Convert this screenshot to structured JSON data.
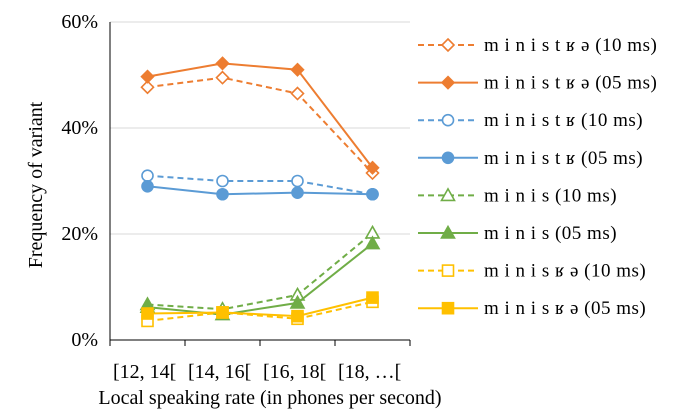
{
  "chart_data": {
    "type": "line",
    "xlabel": "Local speaking rate (in phones per second)",
    "ylabel": "Frequency of variant",
    "categories": [
      "[12, 14[",
      "[14, 16[",
      "[16, 18[",
      "[18, …["
    ],
    "ylim": [
      0,
      60
    ],
    "yticks": [
      0,
      20,
      40,
      60
    ],
    "ytick_labels": [
      "0%",
      "20%",
      "40%",
      "60%"
    ],
    "grid": true,
    "legend_position": "right",
    "series": [
      {
        "name": "m i n i s t ʁ ə (10 ms)",
        "values": [
          47.7,
          49.5,
          46.5,
          31.5
        ],
        "color": "#ED7D31",
        "dashed": true,
        "marker": "diamond",
        "filled": false
      },
      {
        "name": "m i n i s t ʁ ə (05 ms)",
        "values": [
          49.7,
          52.2,
          51.0,
          32.5
        ],
        "color": "#ED7D31",
        "dashed": false,
        "marker": "diamond",
        "filled": true
      },
      {
        "name": "m i n i s t ʁ (10 ms)",
        "values": [
          31.0,
          30.0,
          30.0,
          27.5
        ],
        "color": "#5B9BD5",
        "dashed": true,
        "marker": "circle",
        "filled": false
      },
      {
        "name": "m i n i s t ʁ (05 ms)",
        "values": [
          29.0,
          27.5,
          27.8,
          27.5
        ],
        "color": "#5B9BD5",
        "dashed": false,
        "marker": "circle",
        "filled": true
      },
      {
        "name": "m i n i s (10 ms)",
        "values": [
          6.7,
          5.8,
          8.5,
          20.2
        ],
        "color": "#70AD47",
        "dashed": true,
        "marker": "triangle",
        "filled": false
      },
      {
        "name": "m i n i s (05 ms)",
        "values": [
          6.2,
          4.8,
          7.0,
          18.2
        ],
        "color": "#70AD47",
        "dashed": false,
        "marker": "triangle",
        "filled": true
      },
      {
        "name": "m i n i s ʁ ə (10 ms)",
        "values": [
          3.6,
          5.2,
          4.0,
          7.2
        ],
        "color": "#FFC000",
        "dashed": true,
        "marker": "square",
        "filled": false
      },
      {
        "name": "m i n i s ʁ ə (05 ms)",
        "values": [
          5.0,
          5.2,
          4.5,
          8.0
        ],
        "color": "#FFC000",
        "dashed": false,
        "marker": "square",
        "filled": true
      }
    ]
  }
}
